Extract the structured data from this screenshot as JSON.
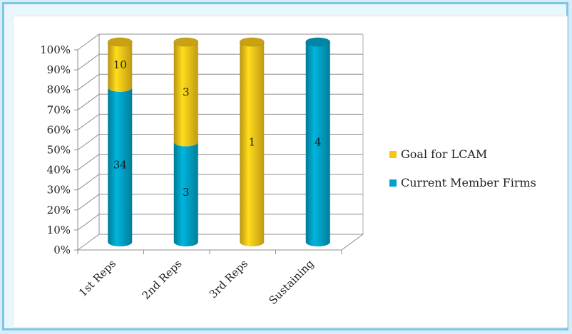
{
  "chart_data": {
    "type": "bar",
    "stacked": true,
    "percent": true,
    "categories": [
      "1st Reps",
      "2nd Reps",
      "3rd Reps",
      "Sustaining"
    ],
    "series": [
      {
        "name": "Current Member Firms",
        "values": [
          34,
          3,
          0,
          4
        ],
        "color": "#00a2c6"
      },
      {
        "name": "Goal for LCAM",
        "values": [
          10,
          3,
          1,
          0
        ],
        "color": "#f5c518"
      }
    ],
    "y_ticks": [
      "0%",
      "10%",
      "20%",
      "30%",
      "40%",
      "50%",
      "60%",
      "70%",
      "80%",
      "90%",
      "100%"
    ],
    "ylim": [
      0,
      100
    ],
    "grid": true,
    "legend_position": "right",
    "legend_order": [
      "Goal for LCAM",
      "Current Member Firms"
    ]
  }
}
